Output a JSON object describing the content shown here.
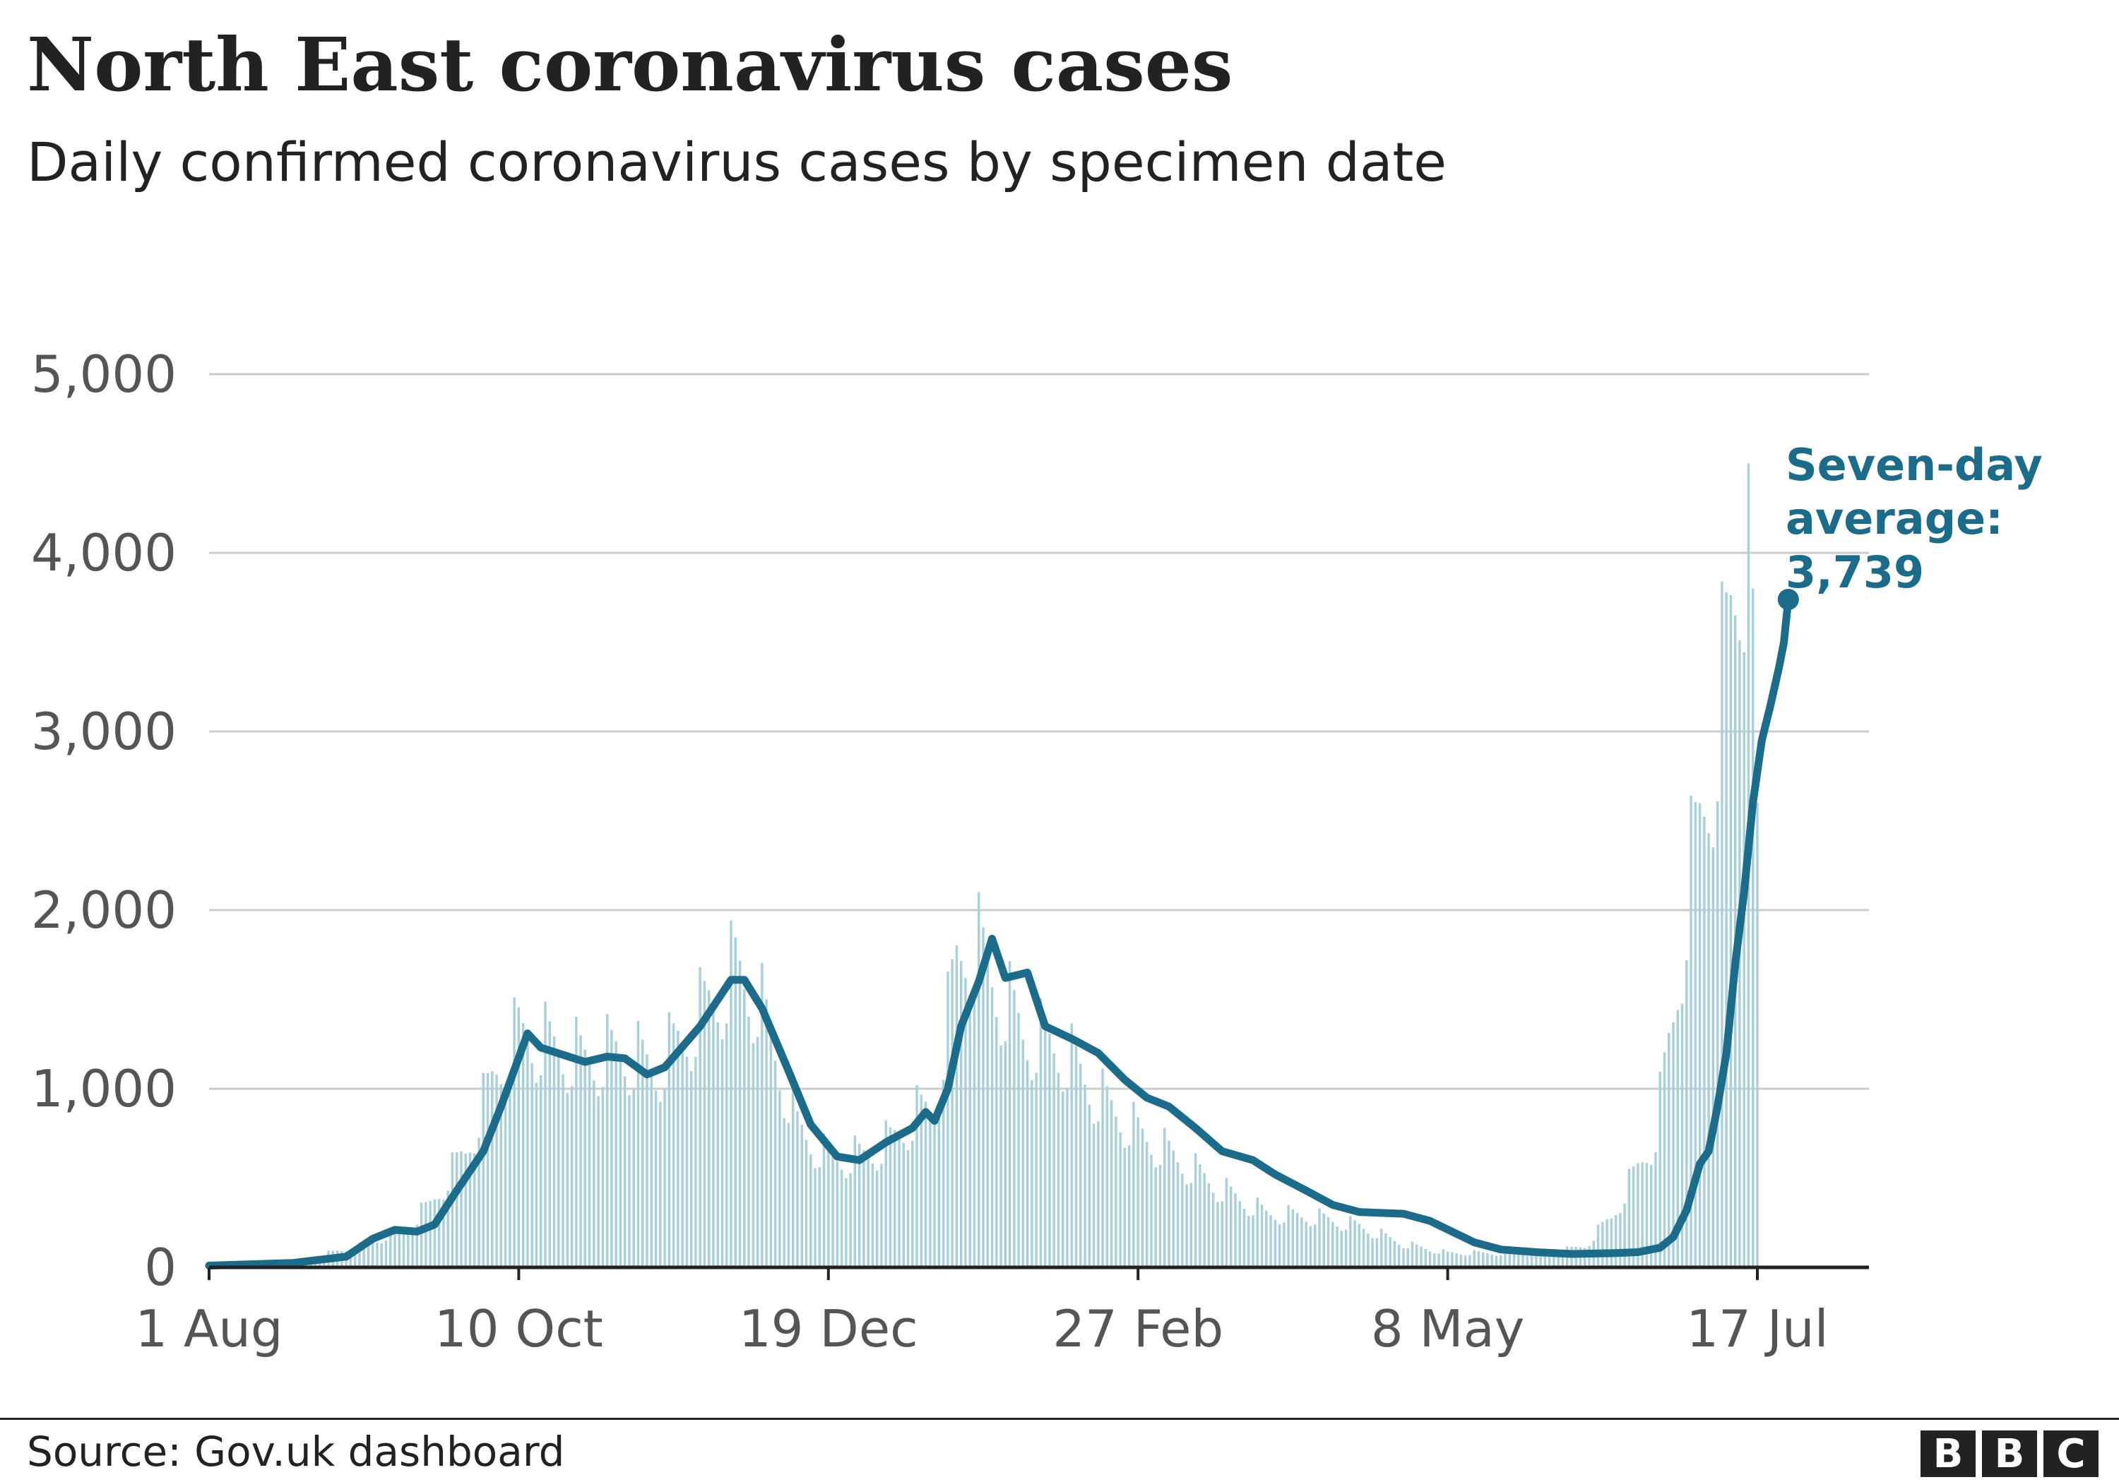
{
  "title": "North East coronavirus cases",
  "subtitle": "Daily confirmed coronavirus cases by specimen date",
  "source": "Source: Gov.uk dashboard",
  "logo": {
    "letters": [
      "B",
      "B",
      "C"
    ]
  },
  "colors": {
    "bars": "#a8cfdc",
    "line": "#1b6c8b",
    "grid": "#cccccc",
    "axis": "#222222",
    "text": "#555555"
  },
  "annotation": {
    "lines": [
      "Seven-day",
      "average:",
      "3,739"
    ]
  },
  "chart_data": {
    "type": "bar",
    "x_start": "2020-08-01",
    "x_end": "2021-07-17",
    "yticks": [
      0,
      1000,
      2000,
      3000,
      4000,
      5000
    ],
    "ytick_labels": [
      "0",
      "1,000",
      "2,000",
      "3,000",
      "4,000",
      "5,000"
    ],
    "ylim": [
      0,
      5000
    ],
    "xticks": [
      "2020-08-01",
      "2020-10-10",
      "2020-12-19",
      "2021-02-27",
      "2021-05-08",
      "2021-07-17"
    ],
    "xtick_labels": [
      "1 Aug",
      "10 Oct",
      "19 Dec",
      "27 Feb",
      "8 May",
      "17 Jul"
    ],
    "series": [
      {
        "type": "bar",
        "anchors": [
          [
            "2020-08-01",
            15
          ],
          [
            "2020-08-20",
            35
          ],
          [
            "2020-09-05",
            120
          ],
          [
            "2020-09-15",
            230
          ],
          [
            "2020-09-20",
            350
          ],
          [
            "2020-09-28",
            650
          ],
          [
            "2020-10-05",
            1100
          ],
          [
            "2020-10-10",
            1300
          ],
          [
            "2020-10-15",
            1250
          ],
          [
            "2020-10-25",
            1150
          ],
          [
            "2020-11-02",
            1200
          ],
          [
            "2020-11-10",
            1100
          ],
          [
            "2020-11-20",
            1400
          ],
          [
            "2020-11-28",
            1650
          ],
          [
            "2020-12-03",
            1500
          ],
          [
            "2020-12-08",
            1100
          ],
          [
            "2020-12-12",
            780
          ],
          [
            "2020-12-19",
            600
          ],
          [
            "2020-12-27",
            620
          ],
          [
            "2021-01-02",
            700
          ],
          [
            "2021-01-08",
            850
          ],
          [
            "2021-01-12",
            900
          ],
          [
            "2021-01-17",
            1700
          ],
          [
            "2021-01-20",
            1850
          ],
          [
            "2021-01-25",
            1600
          ],
          [
            "2021-02-01",
            1300
          ],
          [
            "2021-02-10",
            1200
          ],
          [
            "2021-02-18",
            950
          ],
          [
            "2021-02-27",
            750
          ],
          [
            "2021-03-08",
            600
          ],
          [
            "2021-03-18",
            430
          ],
          [
            "2021-03-28",
            300
          ],
          [
            "2021-04-08",
            280
          ],
          [
            "2021-04-18",
            230
          ],
          [
            "2021-04-28",
            130
          ],
          [
            "2021-05-08",
            80
          ],
          [
            "2021-05-20",
            80
          ],
          [
            "2021-06-01",
            80
          ],
          [
            "2021-06-08",
            120
          ],
          [
            "2021-06-14",
            280
          ],
          [
            "2021-06-20",
            550
          ],
          [
            "2021-06-24",
            750
          ],
          [
            "2021-06-28",
            1400
          ],
          [
            "2021-07-02",
            2200
          ],
          [
            "2021-07-06",
            2700
          ],
          [
            "2021-07-09",
            3200
          ],
          [
            "2021-07-13",
            3900
          ],
          [
            "2021-07-15",
            4500
          ],
          [
            "2021-07-16",
            3800
          ],
          [
            "2021-07-17",
            2600
          ]
        ]
      },
      {
        "type": "line",
        "name": "Seven-day average",
        "points": [
          [
            "2020-08-01",
            10
          ],
          [
            "2020-08-20",
            25
          ],
          [
            "2020-09-01",
            60
          ],
          [
            "2020-09-07",
            160
          ],
          [
            "2020-09-12",
            210
          ],
          [
            "2020-09-17",
            200
          ],
          [
            "2020-09-21",
            240
          ],
          [
            "2020-09-26",
            430
          ],
          [
            "2020-10-02",
            650
          ],
          [
            "2020-10-06",
            900
          ],
          [
            "2020-10-12",
            1310
          ],
          [
            "2020-10-15",
            1230
          ],
          [
            "2020-10-25",
            1150
          ],
          [
            "2020-10-30",
            1180
          ],
          [
            "2020-11-03",
            1170
          ],
          [
            "2020-11-08",
            1080
          ],
          [
            "2020-11-12",
            1120
          ],
          [
            "2020-11-20",
            1350
          ],
          [
            "2020-11-27",
            1610
          ],
          [
            "2020-11-30",
            1610
          ],
          [
            "2020-12-04",
            1450
          ],
          [
            "2020-12-10",
            1100
          ],
          [
            "2020-12-15",
            800
          ],
          [
            "2020-12-21",
            620
          ],
          [
            "2020-12-26",
            600
          ],
          [
            "2021-01-01",
            700
          ],
          [
            "2021-01-07",
            780
          ],
          [
            "2021-01-10",
            870
          ],
          [
            "2021-01-12",
            820
          ],
          [
            "2021-01-15",
            1000
          ],
          [
            "2021-01-18",
            1350
          ],
          [
            "2021-01-22",
            1600
          ],
          [
            "2021-01-25",
            1840
          ],
          [
            "2021-01-28",
            1620
          ],
          [
            "2021-02-02",
            1650
          ],
          [
            "2021-02-06",
            1350
          ],
          [
            "2021-02-12",
            1280
          ],
          [
            "2021-02-18",
            1200
          ],
          [
            "2021-02-24",
            1050
          ],
          [
            "2021-03-01",
            950
          ],
          [
            "2021-03-06",
            900
          ],
          [
            "2021-03-12",
            780
          ],
          [
            "2021-03-18",
            650
          ],
          [
            "2021-03-25",
            600
          ],
          [
            "2021-03-30",
            520
          ],
          [
            "2021-04-06",
            430
          ],
          [
            "2021-04-12",
            350
          ],
          [
            "2021-04-18",
            310
          ],
          [
            "2021-04-28",
            300
          ],
          [
            "2021-05-04",
            260
          ],
          [
            "2021-05-09",
            200
          ],
          [
            "2021-05-14",
            140
          ],
          [
            "2021-05-20",
            100
          ],
          [
            "2021-05-28",
            85
          ],
          [
            "2021-06-05",
            75
          ],
          [
            "2021-06-15",
            80
          ],
          [
            "2021-06-20",
            85
          ],
          [
            "2021-06-25",
            110
          ],
          [
            "2021-06-28",
            170
          ],
          [
            "2021-07-01",
            320
          ],
          [
            "2021-07-04",
            580
          ],
          [
            "2021-07-06",
            650
          ],
          [
            "2021-07-08",
            900
          ],
          [
            "2021-07-10",
            1200
          ],
          [
            "2021-07-12",
            1700
          ],
          [
            "2021-07-14",
            2100
          ],
          [
            "2021-07-16",
            2600
          ],
          [
            "2021-07-18",
            2950
          ],
          [
            "2021-07-20",
            3150
          ],
          [
            "2021-07-22",
            3370
          ],
          [
            "2021-07-23",
            3500
          ],
          [
            "2021-07-24",
            3739
          ]
        ]
      }
    ],
    "annotation_value": 3739,
    "grid": true
  }
}
